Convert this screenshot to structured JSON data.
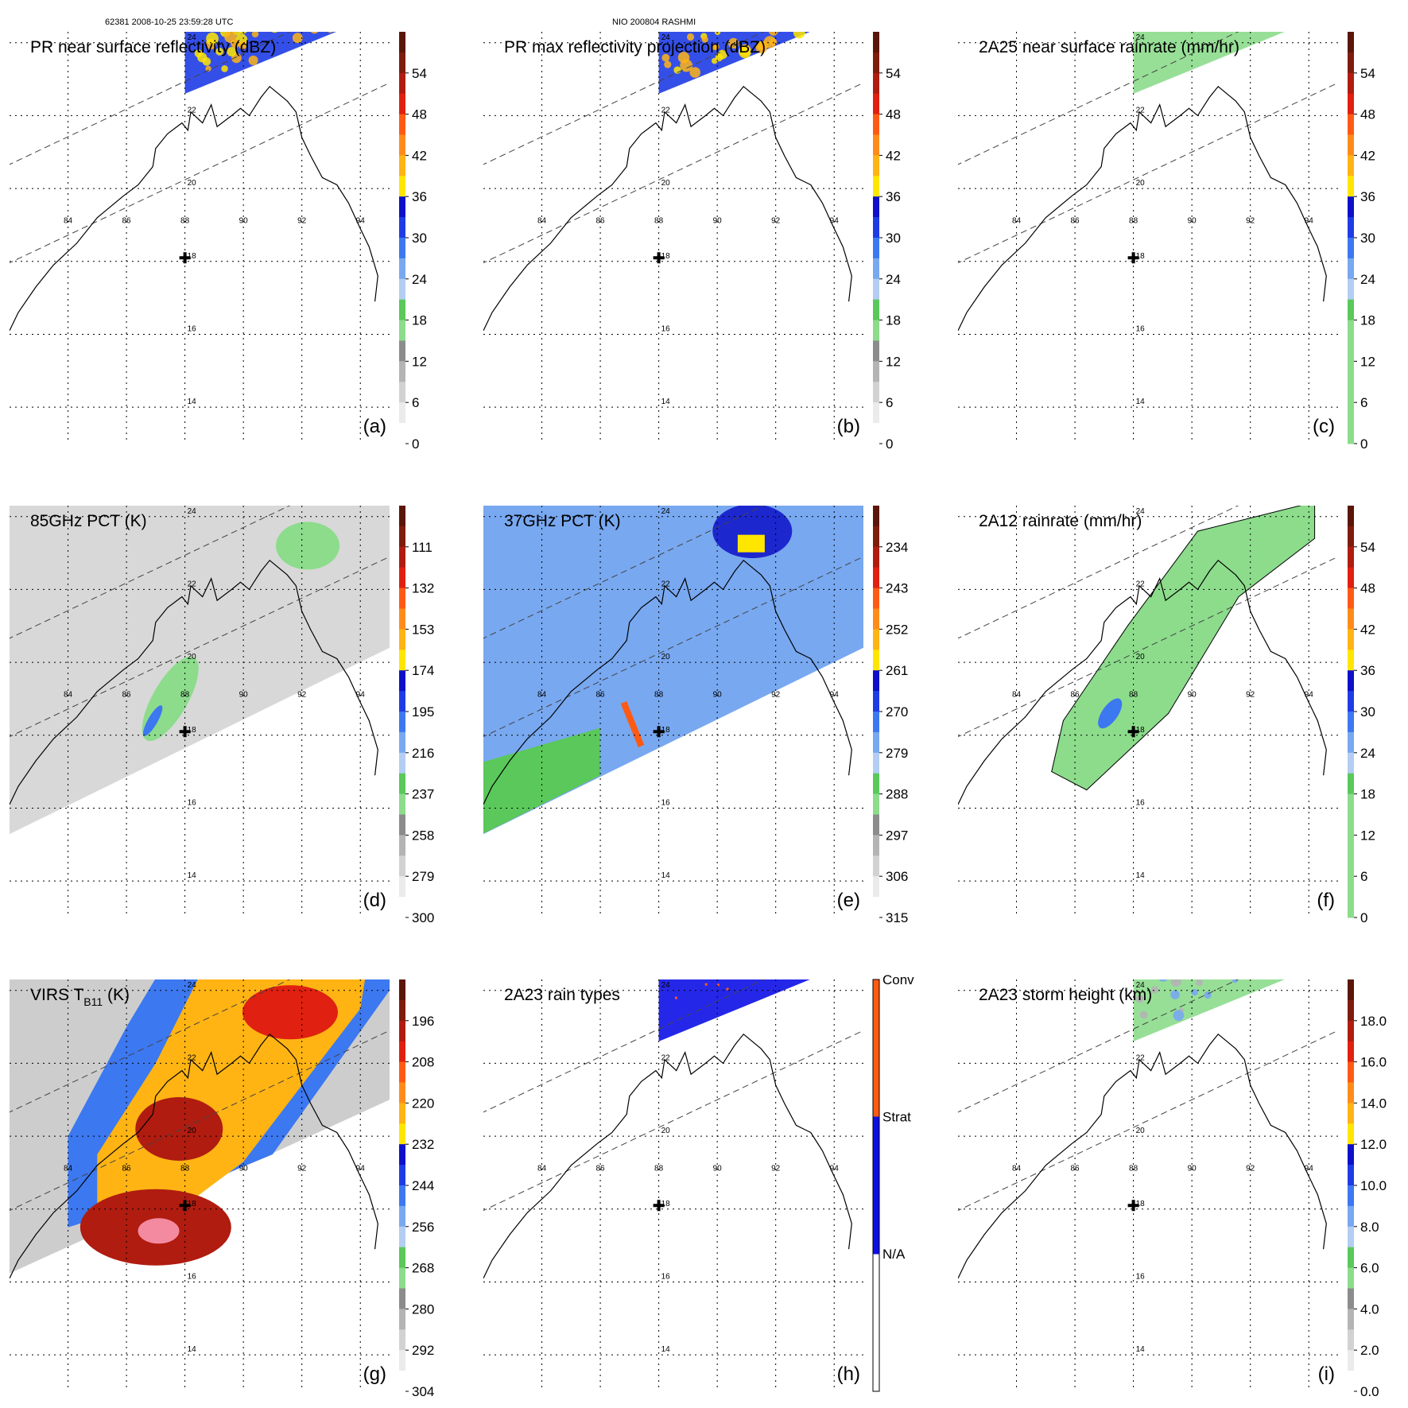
{
  "header": {
    "left": "62381 2008-10-25 23:59:28 UTC",
    "center": "NIO 200804 RASHMI"
  },
  "map": {
    "lon_ticks": [
      84,
      86,
      88,
      90,
      92,
      94
    ],
    "lat_ticks": [
      14,
      16,
      18,
      20,
      22,
      24
    ],
    "storm_center": {
      "lon": 88.0,
      "lat": 18.1
    }
  },
  "chart_data": [
    {
      "type": "heatmap",
      "id": "a",
      "title": "PR near surface reflectivity (dBZ)",
      "panel_label": "(a)",
      "swath": "pr",
      "colorbar": {
        "labels": [
          "54",
          "48",
          "42",
          "36",
          "30",
          "24",
          "18",
          "12",
          "6",
          "0"
        ],
        "colors": [
          "#5a1608",
          "#7e1c0e",
          "#b01c10",
          "#e02010",
          "#ff5a14",
          "#ff8c1a",
          "#ffb414",
          "#ffe600",
          "#0d10c8",
          "#1e3ce6",
          "#3c78f0",
          "#78a8f0",
          "#b4cdf2",
          "#5ac85a",
          "#8cdc8c",
          "#8c8c8c",
          "#b4b4b4",
          "#d2d2d2",
          "#ebebeb",
          "#ffffff"
        ],
        "bottom": "0",
        "top": "60",
        "unit": "dBZ"
      }
    },
    {
      "type": "heatmap",
      "id": "b",
      "title": "PR max reflectivity projection (dBZ)",
      "panel_label": "(b)",
      "swath": "pr",
      "colorbar": {
        "labels": [
          "54",
          "48",
          "42",
          "36",
          "30",
          "24",
          "18",
          "12",
          "6",
          "0"
        ],
        "colors": [
          "#5a1608",
          "#7e1c0e",
          "#b01c10",
          "#e02010",
          "#ff5a14",
          "#ff8c1a",
          "#ffb414",
          "#ffe600",
          "#0d10c8",
          "#1e3ce6",
          "#3c78f0",
          "#78a8f0",
          "#b4cdf2",
          "#5ac85a",
          "#8cdc8c",
          "#8c8c8c",
          "#b4b4b4",
          "#d2d2d2",
          "#ebebeb",
          "#ffffff"
        ],
        "bottom": "0",
        "top": "60",
        "unit": "dBZ"
      }
    },
    {
      "type": "heatmap",
      "id": "c",
      "title": "2A25 near surface rainrate (mm/hr)",
      "panel_label": "(c)",
      "swath": "pr",
      "colorbar": {
        "labels": [
          "54",
          "48",
          "42",
          "36",
          "30",
          "24",
          "18",
          "12",
          "6",
          "0"
        ],
        "colors": [
          "#5a1608",
          "#7e1c0e",
          "#b01c10",
          "#e02010",
          "#ff5a14",
          "#ff8c1a",
          "#ffb414",
          "#ffe600",
          "#0d10c8",
          "#1e3ce6",
          "#3c78f0",
          "#78a8f0",
          "#b4cdf2",
          "#5ac85a",
          "#8cdc8c",
          "#8cdc8c",
          "#8cdc8c",
          "#8cdc8c",
          "#8cdc8c",
          "#8cdc8c"
        ],
        "bottom": "0",
        "top": "60",
        "unit": "mm/hr"
      }
    },
    {
      "type": "heatmap",
      "id": "d",
      "title": "85GHz PCT (K)",
      "panel_label": "(d)",
      "swath": "tmi",
      "colorbar": {
        "labels": [
          "111",
          "132",
          "153",
          "174",
          "195",
          "216",
          "237",
          "258",
          "279",
          "300"
        ],
        "colors": [
          "#5a1608",
          "#7e1c0e",
          "#b01c10",
          "#e02010",
          "#ff5a14",
          "#ff8c1a",
          "#ffb414",
          "#ffe600",
          "#0d10c8",
          "#1e3ce6",
          "#3c78f0",
          "#78a8f0",
          "#b4cdf2",
          "#5ac85a",
          "#8cdc8c",
          "#8c8c8c",
          "#b4b4b4",
          "#d2d2d2",
          "#ebebeb",
          "#ffffff"
        ],
        "bottom": "300",
        "top": "90",
        "unit": "K"
      }
    },
    {
      "type": "heatmap",
      "id": "e",
      "title": "37GHz PCT (K)",
      "panel_label": "(e)",
      "swath": "tmi",
      "colorbar": {
        "labels": [
          "234",
          "243",
          "252",
          "261",
          "270",
          "279",
          "288",
          "297",
          "306",
          "315"
        ],
        "colors": [
          "#5a1608",
          "#7e1c0e",
          "#b01c10",
          "#e02010",
          "#ff5a14",
          "#ff8c1a",
          "#ffb414",
          "#ffe600",
          "#0d10c8",
          "#1e3ce6",
          "#3c78f0",
          "#78a8f0",
          "#b4cdf2",
          "#5ac85a",
          "#8cdc8c",
          "#8c8c8c",
          "#b4b4b4",
          "#d2d2d2",
          "#ebebeb",
          "#ffffff"
        ],
        "bottom": "315",
        "top": "225",
        "unit": "K"
      }
    },
    {
      "type": "heatmap",
      "id": "f",
      "title": "2A12 rainrate (mm/hr)",
      "panel_label": "(f)",
      "swath": "tmi",
      "colorbar": {
        "labels": [
          "54",
          "48",
          "42",
          "36",
          "30",
          "24",
          "18",
          "12",
          "6",
          "0"
        ],
        "colors": [
          "#5a1608",
          "#7e1c0e",
          "#b01c10",
          "#e02010",
          "#ff5a14",
          "#ff8c1a",
          "#ffb414",
          "#ffe600",
          "#0d10c8",
          "#1e3ce6",
          "#3c78f0",
          "#78a8f0",
          "#b4cdf2",
          "#5ac85a",
          "#8cdc8c",
          "#8cdc8c",
          "#8cdc8c",
          "#8cdc8c",
          "#8cdc8c",
          "#8cdc8c"
        ],
        "bottom": "0",
        "top": "60",
        "unit": "mm/hr"
      }
    },
    {
      "type": "heatmap",
      "id": "g",
      "title": "VIRS T",
      "title_sub": "B11",
      "title_tail": " (K)",
      "panel_label": "(g)",
      "swath": "virs",
      "colorbar": {
        "labels": [
          "196",
          "208",
          "220",
          "232",
          "244",
          "256",
          "268",
          "280",
          "292",
          "304"
        ],
        "colors": [
          "#5a1608",
          "#7e1c0e",
          "#b01c10",
          "#e02010",
          "#ff5a14",
          "#ff8c1a",
          "#ffb414",
          "#ffe600",
          "#0d10c8",
          "#1e3ce6",
          "#3c78f0",
          "#78a8f0",
          "#b4cdf2",
          "#5ac85a",
          "#8cdc8c",
          "#8c8c8c",
          "#b4b4b4",
          "#d2d2d2",
          "#ebebeb",
          "#ffffff"
        ],
        "bottom": "304",
        "top": "184",
        "unit": "K"
      }
    },
    {
      "type": "heatmap",
      "id": "h",
      "title": "2A23 rain types",
      "panel_label": "(h)",
      "swath": "pr",
      "colorbar": {
        "categorical": true,
        "labels": [
          "Conv",
          "Strat",
          "N/A"
        ],
        "colors": [
          "#ff5a14",
          "#0d10e6",
          "#ffffff"
        ]
      }
    },
    {
      "type": "heatmap",
      "id": "i",
      "title": "2A23 storm height (km)",
      "panel_label": "(i)",
      "swath": "pr",
      "colorbar": {
        "labels": [
          "18.0",
          "16.0",
          "14.0",
          "12.0",
          "10.0",
          "8.0",
          "6.0",
          "4.0",
          "2.0",
          "0.0"
        ],
        "colors": [
          "#5a1608",
          "#7e1c0e",
          "#b01c10",
          "#e02010",
          "#ff5a14",
          "#ff8c1a",
          "#ffb414",
          "#ffe600",
          "#0d10c8",
          "#1e3ce6",
          "#3c78f0",
          "#78a8f0",
          "#b4cdf2",
          "#5ac85a",
          "#8cdc8c",
          "#8c8c8c",
          "#b4b4b4",
          "#d2d2d2",
          "#ebebeb",
          "#ffffff"
        ],
        "bottom": "0.0",
        "top": "20.0",
        "unit": "km"
      }
    }
  ]
}
